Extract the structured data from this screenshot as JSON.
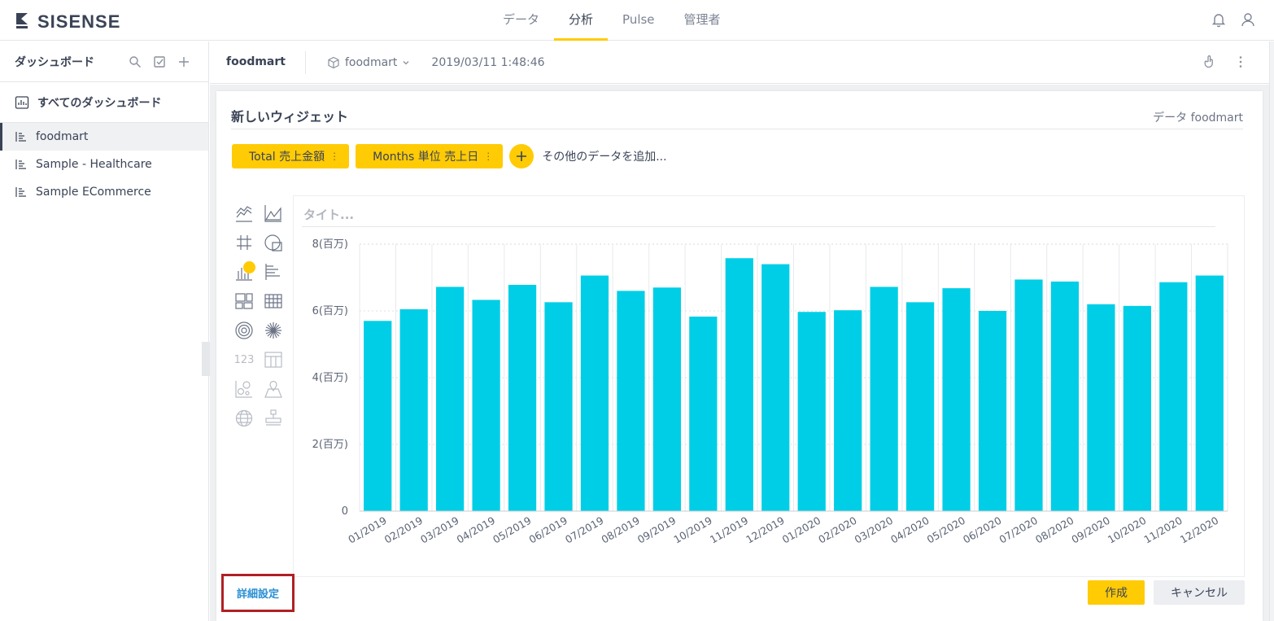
{
  "app": {
    "logo_text": "SISENSE"
  },
  "topnav": {
    "items": [
      {
        "label": "データ"
      },
      {
        "label": "分析"
      },
      {
        "label": "Pulse"
      },
      {
        "label": "管理者"
      }
    ],
    "active": "分析"
  },
  "sidebar": {
    "title": "ダッシュボード",
    "all_label": "すべてのダッシュボード",
    "items": [
      {
        "label": "foodmart",
        "active": true
      },
      {
        "label": "Sample - Healthcare"
      },
      {
        "label": "Sample ECommerce"
      }
    ]
  },
  "dashboard": {
    "name": "foodmart",
    "datasource": "foodmart",
    "date": "2019/03/11 1:48:46"
  },
  "editor": {
    "title": "新しいウィジェット",
    "data_label": "データ foodmart",
    "pills": [
      {
        "label": "Total 売上金額"
      },
      {
        "label": "Months 単位 売上日"
      }
    ],
    "add_more": "その他のデータを追加...",
    "preview_title_placeholder": "タイト...",
    "advanced_link": "詳細設定",
    "create_button": "作成",
    "cancel_button": "キャンセル",
    "indicator_label": "123"
  },
  "colors": {
    "accent": "#ffcb05",
    "bar": "#00cee6",
    "link": "#2a8fd4",
    "highlight_box": "#b11f24"
  },
  "chart_data": {
    "type": "bar",
    "categories": [
      "01/2019",
      "02/2019",
      "03/2019",
      "04/2019",
      "05/2019",
      "06/2019",
      "07/2019",
      "08/2019",
      "09/2019",
      "10/2019",
      "11/2019",
      "12/2019",
      "01/2020",
      "02/2020",
      "03/2020",
      "04/2020",
      "05/2020",
      "06/2020",
      "07/2020",
      "08/2020",
      "09/2020",
      "10/2020",
      "11/2020",
      "12/2020"
    ],
    "values": [
      5.7,
      6.05,
      6.72,
      6.33,
      6.78,
      6.26,
      7.06,
      6.6,
      6.7,
      5.83,
      7.58,
      7.4,
      5.97,
      6.02,
      6.72,
      6.26,
      6.68,
      6.0,
      6.94,
      6.88,
      6.2,
      6.15,
      6.86,
      7.06
    ],
    "yticks": [
      "0",
      "2(百万)",
      "4(百万)",
      "6(百万)",
      "8(百万)"
    ],
    "ytick_values": [
      0,
      2,
      4,
      6,
      8
    ],
    "ylim": [
      0,
      8
    ],
    "grid": "vertical dotted",
    "unit": "百万"
  }
}
